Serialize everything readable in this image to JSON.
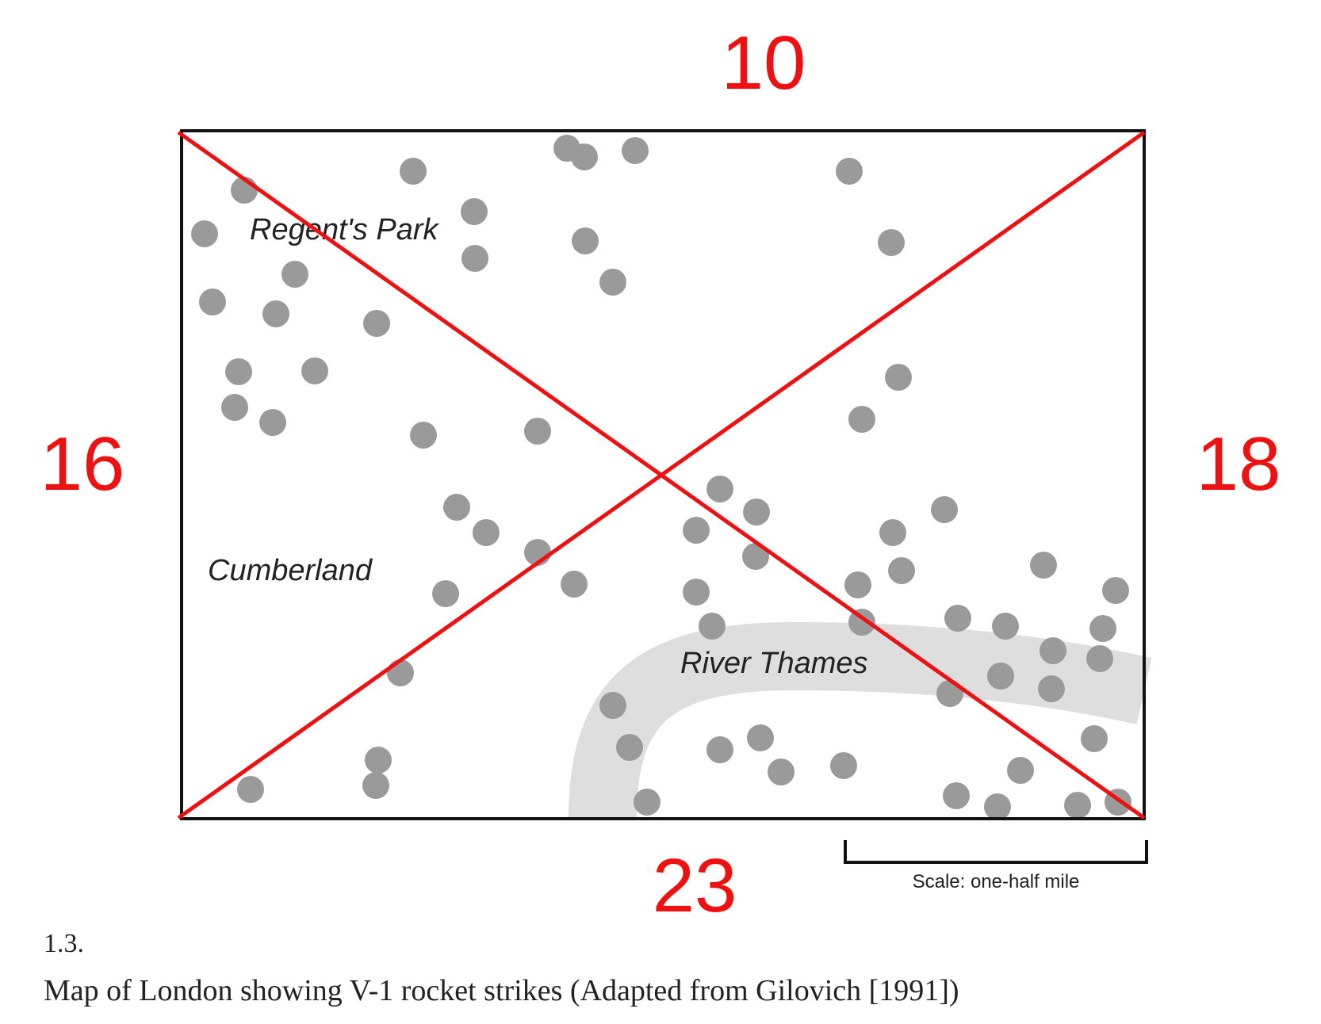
{
  "colors": {
    "annotation": "#ee1111",
    "strike_dot": "#9a9a9a",
    "river": "#dedede",
    "frame": "#111111"
  },
  "quadrant_counts": {
    "top": "10",
    "left": "16",
    "right": "18",
    "bottom": "23"
  },
  "map_labels": {
    "regents_park": "Regent's Park",
    "cumberland": "Cumberland",
    "river_thames": "River Thames"
  },
  "scale_bar": {
    "label": "Scale: one-half mile"
  },
  "caption": {
    "number": "1.3.",
    "text": "Map of London showing V-1 rocket strikes (Adapted from Gilovich [1991])"
  }
}
